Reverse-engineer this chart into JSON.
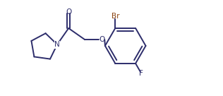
{
  "background_color": "#ffffff",
  "bond_color": "#2d2d6b",
  "atom_colors": {
    "N": "#2d2d6b",
    "O_carbonyl": "#2d2d6b",
    "O_ether": "#2d2d6b",
    "Br": "#8B4513",
    "F": "#2d2d6b"
  },
  "figsize": [
    3.16,
    1.36
  ],
  "dpi": 100,
  "lw": 1.4,
  "fontsize": 7.5
}
